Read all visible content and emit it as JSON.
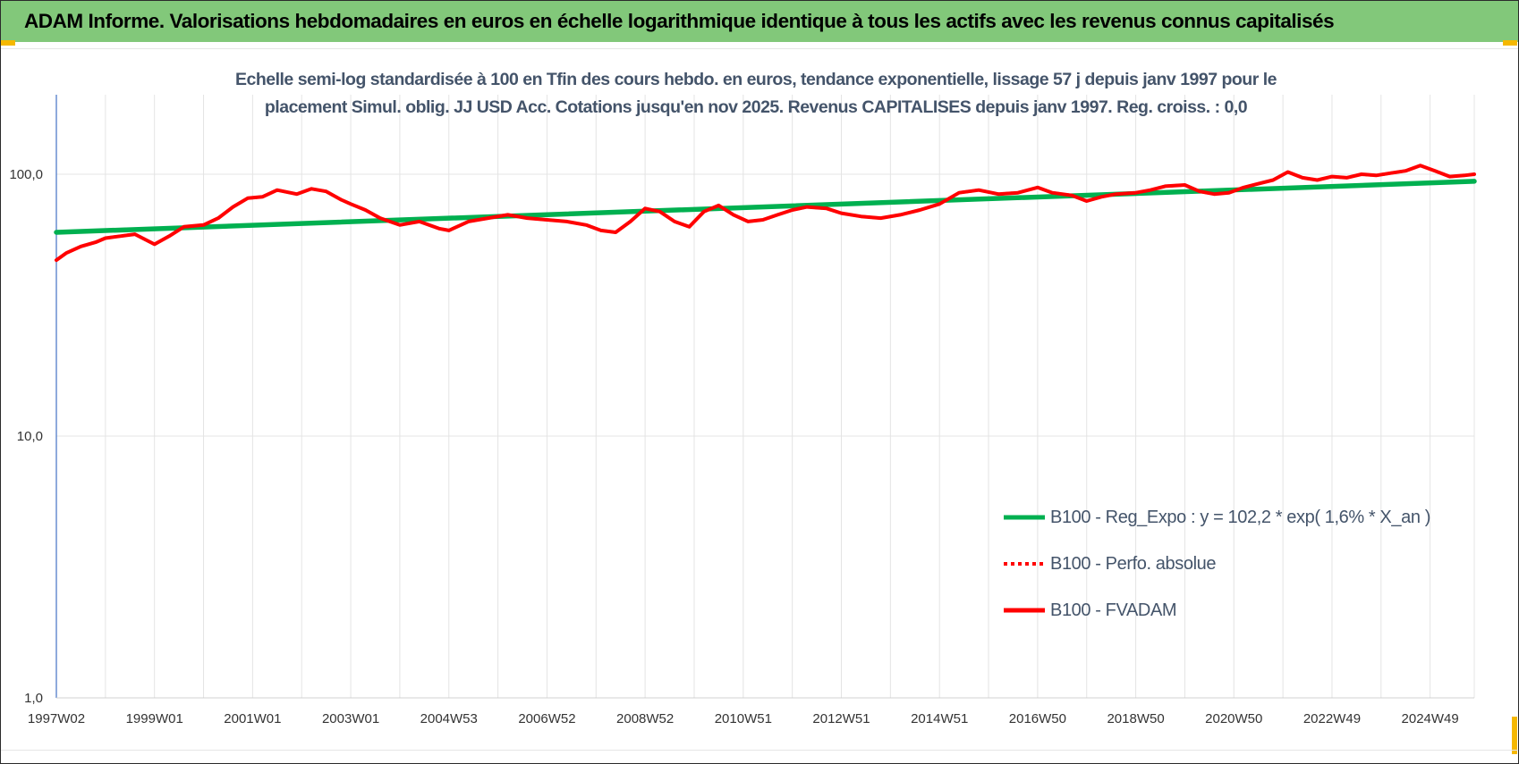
{
  "header": {
    "title": "ADAM Informe. Valorisations hebdomadaires en euros en échelle logarithmique identique à tous les actifs avec les revenus connus capitalisés"
  },
  "chart_data": {
    "type": "line",
    "y_scale": "log",
    "title_line1": "Echelle semi-log standardisée à 100 en Tfin des cours hebdo. en euros, tendance exponentielle, lissage 57 j depuis janv 1997 pour le",
    "title_line2": "placement Simul. oblig. JJ USD Acc. Cotations jusqu'en nov 2025. Revenus CAPITALISES depuis janv 1997. Reg. croiss. : 0,0",
    "ylim": [
      1,
      200
    ],
    "y_ticks": [
      {
        "value": 1,
        "label": "1,0"
      },
      {
        "value": 10,
        "label": "10,0"
      },
      {
        "value": 100,
        "label": "100,0"
      }
    ],
    "x_range": [
      1997.0,
      2025.9
    ],
    "x_ticks": [
      {
        "t": 1997.0,
        "label": "1997W02"
      },
      {
        "t": 1999.0,
        "label": "1999W01"
      },
      {
        "t": 2001.0,
        "label": "2001W01"
      },
      {
        "t": 2003.0,
        "label": "2003W01"
      },
      {
        "t": 2005.0,
        "label": "2004W53"
      },
      {
        "t": 2007.0,
        "label": "2006W52"
      },
      {
        "t": 2009.0,
        "label": "2008W52"
      },
      {
        "t": 2011.0,
        "label": "2010W51"
      },
      {
        "t": 2013.0,
        "label": "2012W51"
      },
      {
        "t": 2015.0,
        "label": "2014W51"
      },
      {
        "t": 2017.0,
        "label": "2016W50"
      },
      {
        "t": 2019.0,
        "label": "2018W50"
      },
      {
        "t": 2021.0,
        "label": "2020W50"
      },
      {
        "t": 2023.0,
        "label": "2022W49"
      },
      {
        "t": 2025.0,
        "label": "2024W49"
      }
    ],
    "grid": "vertical",
    "legend": {
      "position": "bottom-right",
      "items": [
        {
          "name": "B100 - Reg_Expo : y = 102,2 * exp( 1,6% *  X_an )",
          "color": "#00b050",
          "style": "solid"
        },
        {
          "name": "B100 - Perfo. absolue",
          "color": "#ff0000",
          "style": "dotted"
        },
        {
          "name": "B100 - FVADAM",
          "color": "#ff0000",
          "style": "solid"
        }
      ]
    },
    "series": [
      {
        "name": "B100 - Reg_Expo",
        "color": "#00b050",
        "x": [
          1997.0,
          2025.9
        ],
        "y": [
          60.0,
          94.0
        ]
      },
      {
        "name": "B100 - Perfo. absolue",
        "color": "#ff0000",
        "x": [
          1997.0,
          1997.2,
          1997.5,
          1997.8,
          1998.0,
          1998.3,
          1998.6,
          1999.0,
          1999.3,
          1999.6,
          2000.0,
          2000.3,
          2000.6,
          2000.9,
          2001.2,
          2001.5,
          2001.9,
          2002.2,
          2002.5,
          2002.8,
          2003.0,
          2003.3,
          2003.6,
          2004.0,
          2004.4,
          2004.8,
          2005.0,
          2005.4,
          2005.8,
          2006.2,
          2006.6,
          2007.0,
          2007.4,
          2007.8,
          2008.1,
          2008.4,
          2008.7,
          2009.0,
          2009.3,
          2009.6,
          2009.9,
          2010.2,
          2010.5,
          2010.8,
          2011.1,
          2011.4,
          2011.7,
          2012.0,
          2012.3,
          2012.7,
          2013.0,
          2013.4,
          2013.8,
          2014.2,
          2014.6,
          2015.0,
          2015.4,
          2015.8,
          2016.2,
          2016.6,
          2017.0,
          2017.3,
          2017.7,
          2018.0,
          2018.3,
          2018.6,
          2019.0,
          2019.3,
          2019.6,
          2020.0,
          2020.3,
          2020.6,
          2020.9,
          2021.2,
          2021.5,
          2021.8,
          2022.1,
          2022.4,
          2022.7,
          2023.0,
          2023.3,
          2023.6,
          2023.9,
          2024.2,
          2024.5,
          2024.8,
          2025.1,
          2025.4,
          2025.7,
          2025.9
        ],
        "y": [
          47.0,
          50.0,
          53.0,
          55.0,
          57.0,
          58.0,
          59.0,
          54.0,
          58.0,
          63.0,
          64.0,
          68.0,
          75.0,
          81.0,
          82.0,
          87.0,
          84.0,
          88.0,
          86.0,
          80.0,
          77.0,
          73.0,
          68.0,
          64.0,
          66.0,
          62.0,
          61.0,
          66.0,
          68.0,
          70.0,
          68.0,
          67.0,
          66.0,
          64.0,
          61.0,
          60.0,
          66.0,
          74.0,
          72.0,
          66.0,
          63.0,
          72.0,
          76.0,
          70.0,
          66.0,
          67.0,
          70.0,
          73.0,
          75.0,
          74.0,
          71.0,
          69.0,
          68.0,
          70.0,
          73.0,
          77.0,
          85.0,
          87.0,
          84.0,
          85.0,
          89.0,
          85.0,
          83.0,
          79.0,
          82.0,
          84.0,
          85.0,
          87.0,
          90.0,
          91.0,
          86.0,
          84.0,
          85.0,
          89.0,
          92.0,
          95.0,
          102.0,
          97.0,
          95.0,
          98.0,
          97.0,
          100.0,
          99.0,
          101.0,
          103.0,
          108.0,
          103.0,
          98.0,
          99.0,
          100.0
        ]
      },
      {
        "name": "B100 - FVADAM",
        "color": "#ff0000",
        "x": [
          1997.0,
          1997.2,
          1997.5,
          1997.8,
          1998.0,
          1998.3,
          1998.6,
          1999.0,
          1999.3,
          1999.6,
          2000.0,
          2000.3,
          2000.6,
          2000.9,
          2001.2,
          2001.5,
          2001.9,
          2002.2,
          2002.5,
          2002.8,
          2003.0,
          2003.3,
          2003.6,
          2004.0,
          2004.4,
          2004.8,
          2005.0,
          2005.4,
          2005.8,
          2006.2,
          2006.6,
          2007.0,
          2007.4,
          2007.8,
          2008.1,
          2008.4,
          2008.7,
          2009.0,
          2009.3,
          2009.6,
          2009.9,
          2010.2,
          2010.5,
          2010.8,
          2011.1,
          2011.4,
          2011.7,
          2012.0,
          2012.3,
          2012.7,
          2013.0,
          2013.4,
          2013.8,
          2014.2,
          2014.6,
          2015.0,
          2015.4,
          2015.8,
          2016.2,
          2016.6,
          2017.0,
          2017.3,
          2017.7,
          2018.0,
          2018.3,
          2018.6,
          2019.0,
          2019.3,
          2019.6,
          2020.0,
          2020.3,
          2020.6,
          2020.9,
          2021.2,
          2021.5,
          2021.8,
          2022.1,
          2022.4,
          2022.7,
          2023.0,
          2023.3,
          2023.6,
          2023.9,
          2024.2,
          2024.5,
          2024.8,
          2025.1,
          2025.4,
          2025.7,
          2025.9
        ],
        "y": [
          47.0,
          50.0,
          53.0,
          55.0,
          57.0,
          58.0,
          59.0,
          54.0,
          58.0,
          63.0,
          64.0,
          68.0,
          75.0,
          81.0,
          82.0,
          87.0,
          84.0,
          88.0,
          86.0,
          80.0,
          77.0,
          73.0,
          68.0,
          64.0,
          66.0,
          62.0,
          61.0,
          66.0,
          68.0,
          70.0,
          68.0,
          67.0,
          66.0,
          64.0,
          61.0,
          60.0,
          66.0,
          74.0,
          72.0,
          66.0,
          63.0,
          72.0,
          76.0,
          70.0,
          66.0,
          67.0,
          70.0,
          73.0,
          75.0,
          74.0,
          71.0,
          69.0,
          68.0,
          70.0,
          73.0,
          77.0,
          85.0,
          87.0,
          84.0,
          85.0,
          89.0,
          85.0,
          83.0,
          79.0,
          82.0,
          84.0,
          85.0,
          87.0,
          90.0,
          91.0,
          86.0,
          84.0,
          85.0,
          89.0,
          92.0,
          95.0,
          102.0,
          97.0,
          95.0,
          98.0,
          97.0,
          100.0,
          99.0,
          101.0,
          103.0,
          108.0,
          103.0,
          98.0,
          99.0,
          100.0
        ]
      }
    ]
  }
}
